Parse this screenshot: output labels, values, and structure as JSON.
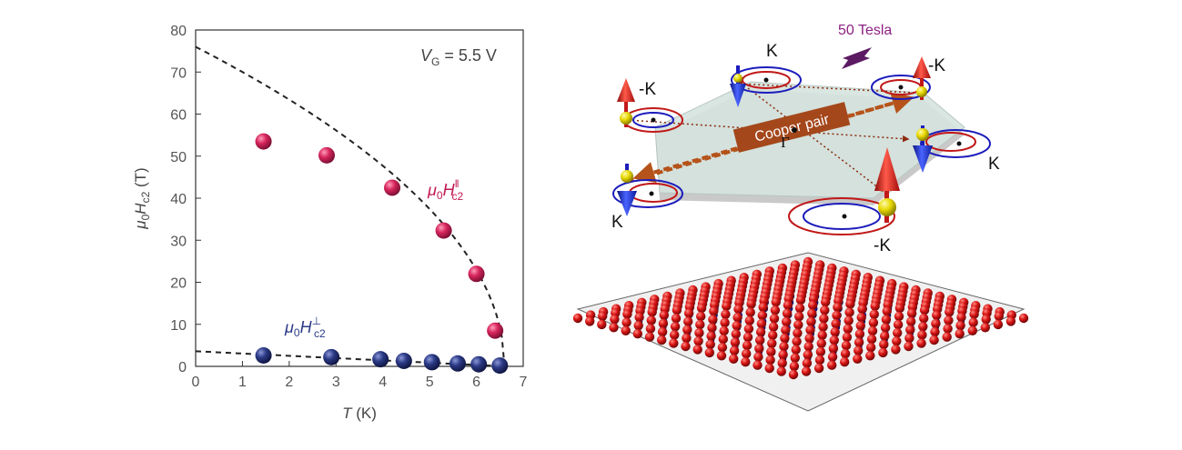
{
  "chart_data": {
    "type": "scatter",
    "x_axis": {
      "title_var": "T",
      "title_unit": "(K)",
      "range": [
        0,
        7
      ],
      "ticks": [
        "0",
        "1",
        "2",
        "3",
        "4",
        "5",
        "6",
        "7"
      ]
    },
    "y_axis": {
      "title_var": "μ",
      "title_sub0": "0",
      "title_H": "H",
      "title_sub": "c2",
      "title_unit": "(T)",
      "range": [
        0,
        80
      ],
      "ticks": [
        "0",
        "10",
        "20",
        "30",
        "40",
        "50",
        "60",
        "70",
        "80"
      ]
    },
    "annotation": {
      "var": "V",
      "sub": "G",
      "rest": " = 5.5 V"
    },
    "series": [
      {
        "label_mu": "μ",
        "label_sub0": "0",
        "label_H": "H",
        "label_sup": "‖",
        "label_sub": "c2",
        "color": "#c2184f",
        "points": [
          [
            1.45,
            53.5
          ],
          [
            2.8,
            50.2
          ],
          [
            4.2,
            42.5
          ],
          [
            5.3,
            32.3
          ],
          [
            6.0,
            22.0
          ],
          [
            6.4,
            8.5
          ]
        ],
        "fit": {
          "type": "ginzburg-landau-sqrt",
          "Hc0": 76,
          "Tc": 6.6
        }
      },
      {
        "label_mu": "μ",
        "label_sub0": "0",
        "label_H": "H",
        "label_sup": "⊥",
        "label_sub": "c2",
        "color": "#1e2a6b",
        "points": [
          [
            1.45,
            2.6
          ],
          [
            2.9,
            2.2
          ],
          [
            3.95,
            1.7
          ],
          [
            4.45,
            1.3
          ],
          [
            5.05,
            1.0
          ],
          [
            5.6,
            0.7
          ],
          [
            6.05,
            0.5
          ],
          [
            6.5,
            0.2
          ]
        ],
        "fit": {
          "type": "linear",
          "Hc0": 3.6,
          "Tc": 6.6
        }
      }
    ]
  },
  "illustration": {
    "field_label": "50 Tesla",
    "field_color": "#8e2184",
    "valley_labels": [
      "K",
      "-K",
      "-K",
      "K",
      "K",
      "-K"
    ],
    "pair_label": "Cooper pair",
    "gamma_label": "Γ"
  }
}
